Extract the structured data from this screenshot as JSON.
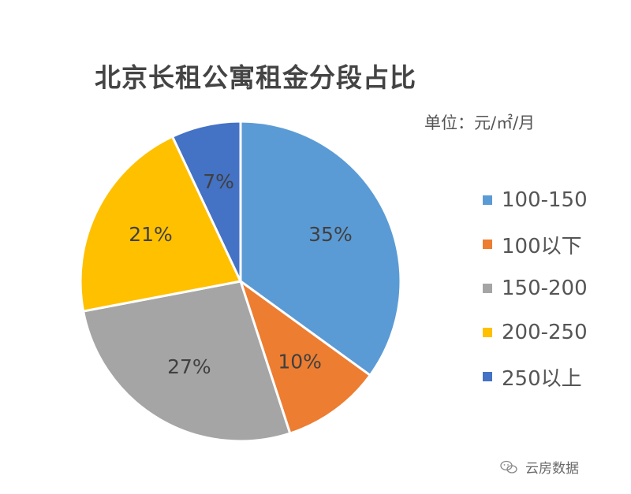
{
  "chart_data": {
    "type": "pie",
    "title": "北京长租公寓租金分段占比",
    "unit_note": "单位：元/㎡/月",
    "slices": [
      {
        "label": "100-150",
        "value": 35,
        "display": "35%",
        "color": "#5B9BD5"
      },
      {
        "label": "100以下",
        "value": 10,
        "display": "10%",
        "color": "#ED7D31"
      },
      {
        "label": "150-200",
        "value": 27,
        "display": "27%",
        "color": "#A5A5A5"
      },
      {
        "label": "200-250",
        "value": 21,
        "display": "21%",
        "color": "#FFC000"
      },
      {
        "label": "250以上",
        "value": 7,
        "display": "7%",
        "color": "#4472C4"
      }
    ],
    "legend_position": "right"
  },
  "watermark": {
    "text": "云房数据",
    "icon": "wechat-icon"
  }
}
